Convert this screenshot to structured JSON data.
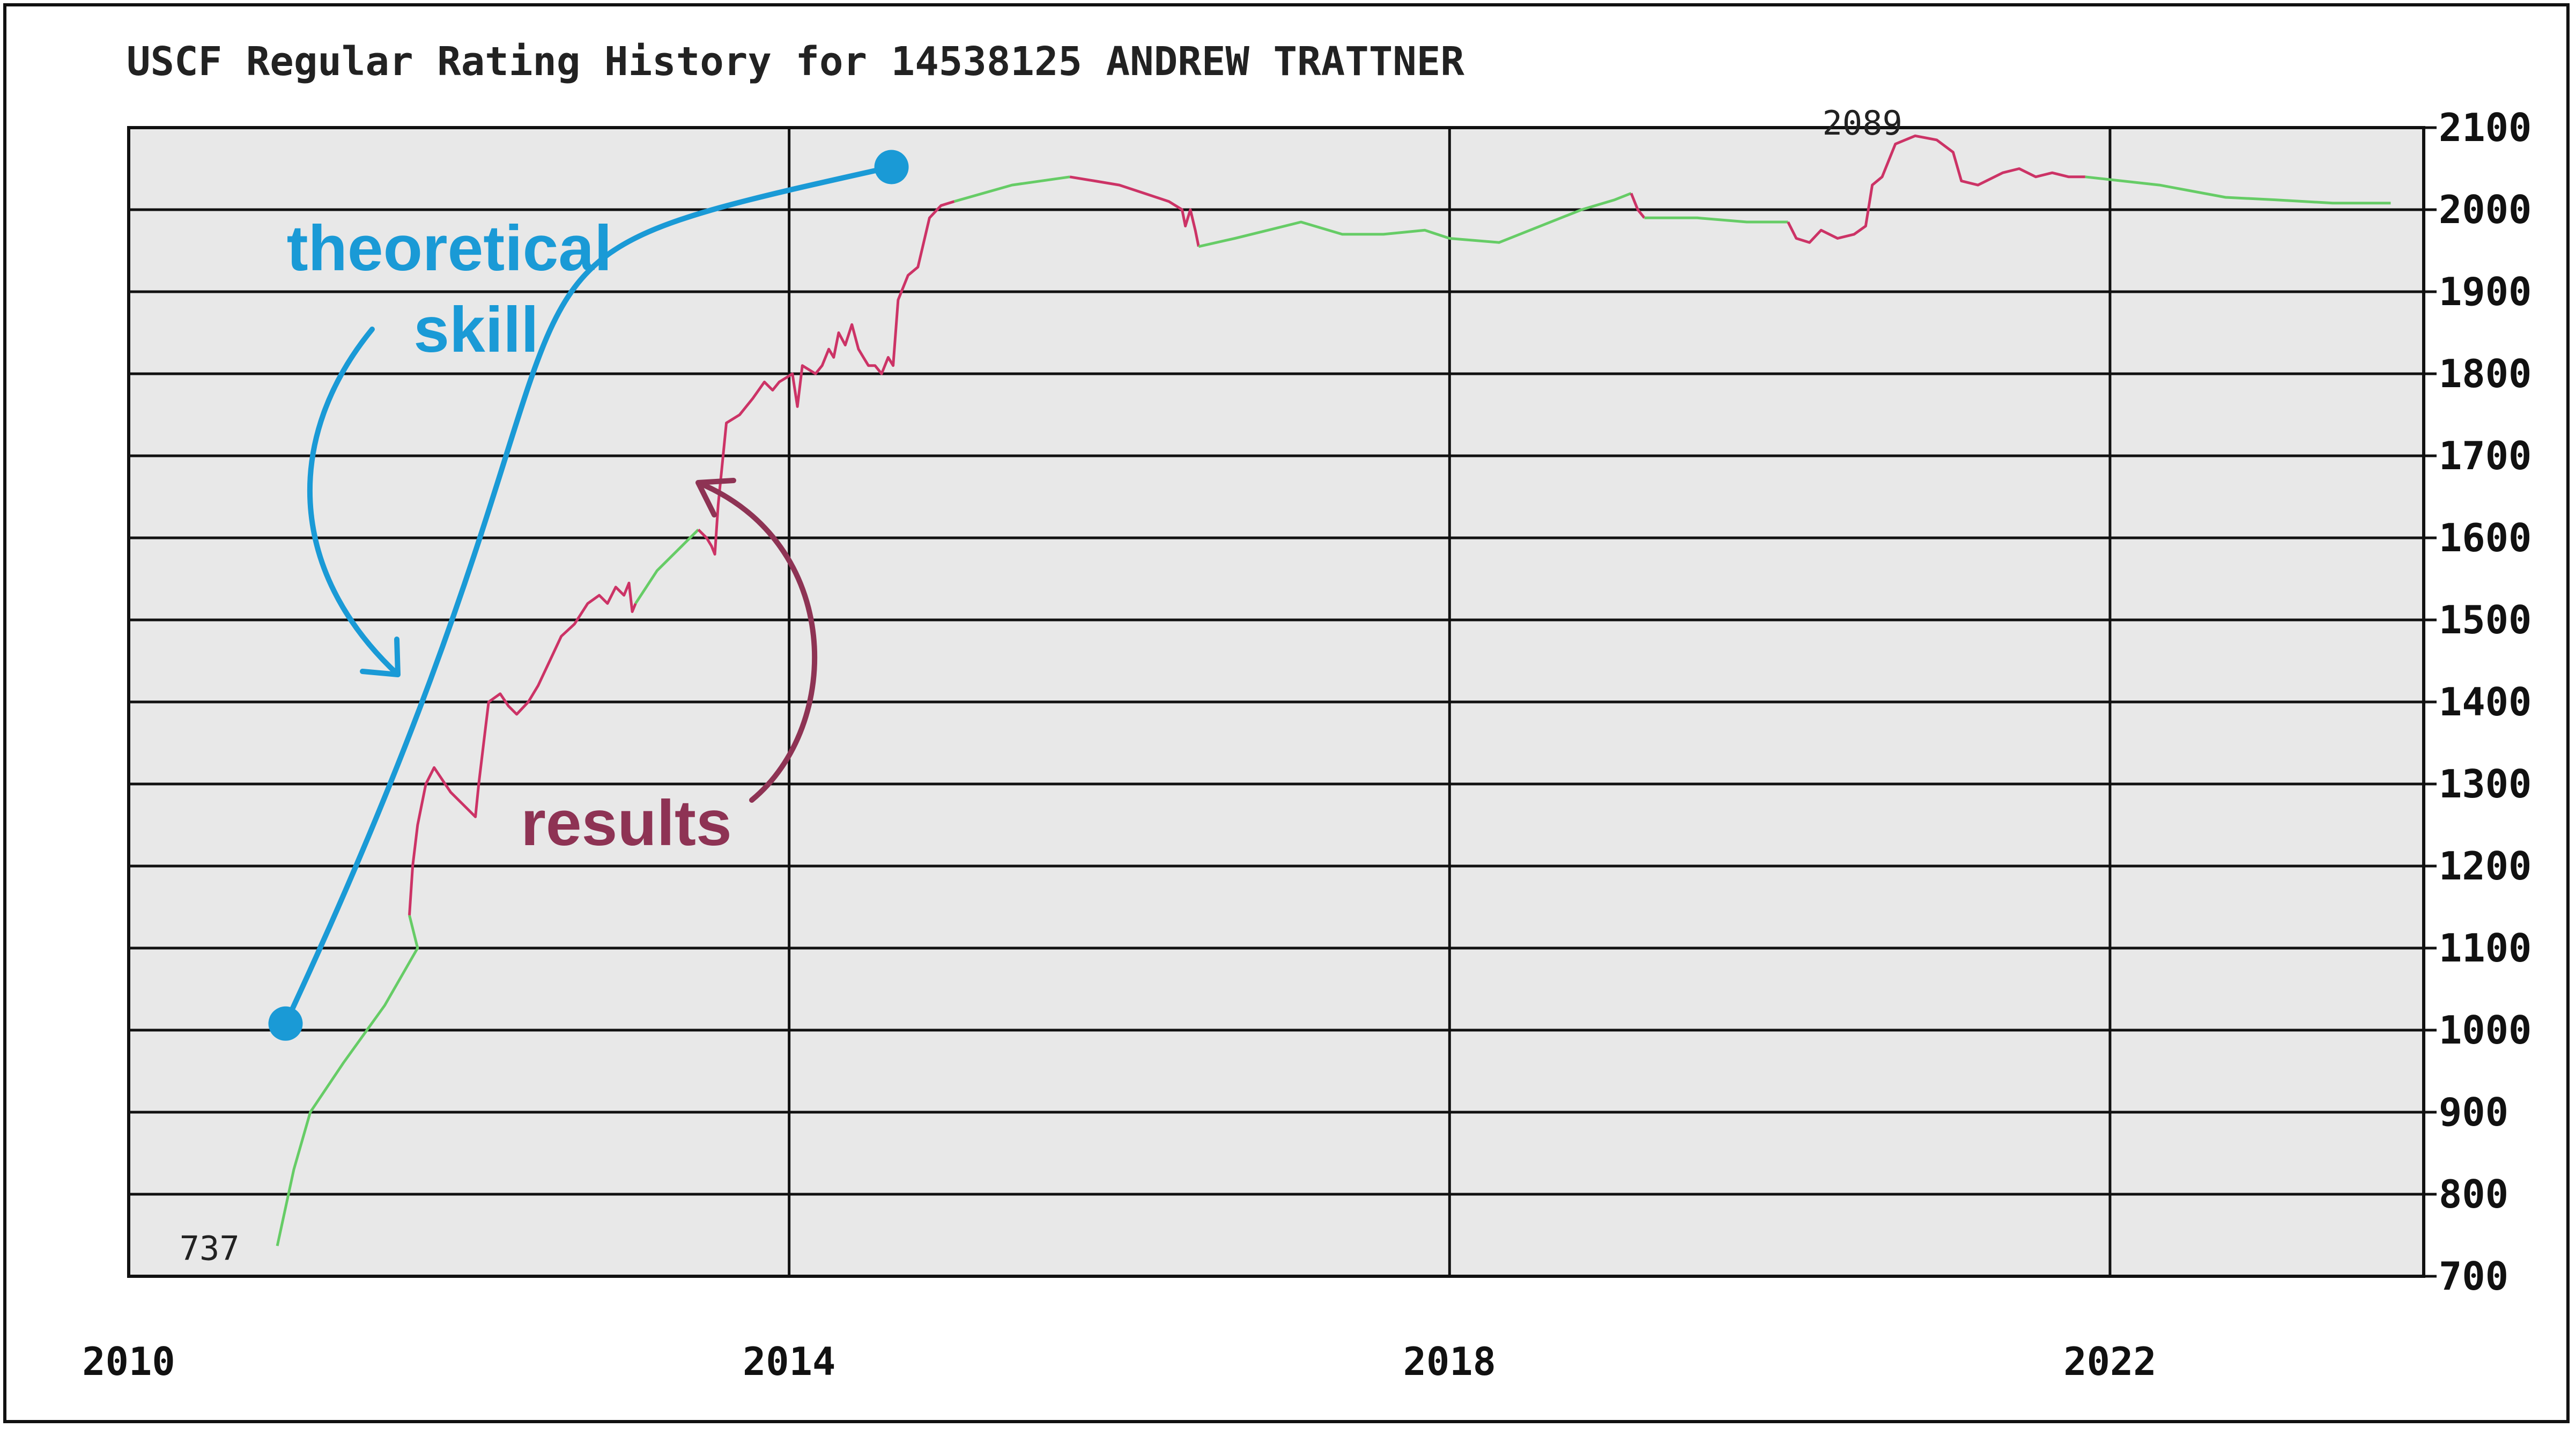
{
  "chart_data": {
    "type": "line",
    "title": "USCF Regular Rating History for 14538125 ANDREW TRATTNER",
    "xlabel": "",
    "ylabel": "",
    "xlim": [
      2010,
      2023.9
    ],
    "ylim": [
      700,
      2100
    ],
    "x_ticks": [
      {
        "value": 2010,
        "label": "2010"
      },
      {
        "value": 2014,
        "label": "2014"
      },
      {
        "value": 2018,
        "label": "2018"
      },
      {
        "value": 2022,
        "label": "2022"
      }
    ],
    "y_ticks": [
      {
        "value": 2100,
        "label": "2100"
      },
      {
        "value": 2000,
        "label": "2000"
      },
      {
        "value": 1900,
        "label": "1900"
      },
      {
        "value": 1800,
        "label": "1800"
      },
      {
        "value": 1700,
        "label": "1700"
      },
      {
        "value": 1600,
        "label": "1600"
      },
      {
        "value": 1500,
        "label": "1500"
      },
      {
        "value": 1400,
        "label": "1400"
      },
      {
        "value": 1300,
        "label": "1300"
      },
      {
        "value": 1200,
        "label": "1200"
      },
      {
        "value": 1100,
        "label": "1100"
      },
      {
        "value": 1000,
        "label": "1000"
      },
      {
        "value": 900,
        "label": "900"
      },
      {
        "value": 800,
        "label": "800"
      },
      {
        "value": 700,
        "label": "700"
      }
    ],
    "grid": true,
    "axis_side": "right",
    "colors": {
      "plot_bg": "#e8e8e8",
      "grid": "#111111",
      "green": "#66cc66",
      "red": "#cc3366",
      "skill": "#1a9ad6",
      "results": "#8e3354"
    },
    "series": [
      {
        "color": "green",
        "points": [
          [
            2010.9,
            737
          ],
          [
            2011.0,
            830
          ],
          [
            2011.1,
            900
          ],
          [
            2011.3,
            960
          ],
          [
            2011.55,
            1030
          ],
          [
            2011.75,
            1100
          ],
          [
            2011.7,
            1140
          ]
        ]
      },
      {
        "color": "red",
        "points": [
          [
            2011.7,
            1140
          ],
          [
            2011.72,
            1200
          ],
          [
            2011.75,
            1250
          ],
          [
            2011.8,
            1300
          ],
          [
            2011.85,
            1320
          ],
          [
            2011.95,
            1290
          ],
          [
            2012.05,
            1270
          ],
          [
            2012.1,
            1260
          ],
          [
            2012.12,
            1300
          ],
          [
            2012.15,
            1350
          ],
          [
            2012.18,
            1400
          ],
          [
            2012.25,
            1410
          ],
          [
            2012.3,
            1395
          ],
          [
            2012.35,
            1385
          ],
          [
            2012.42,
            1400
          ],
          [
            2012.48,
            1420
          ],
          [
            2012.55,
            1450
          ],
          [
            2012.62,
            1480
          ],
          [
            2012.7,
            1495
          ],
          [
            2012.78,
            1520
          ],
          [
            2012.85,
            1530
          ],
          [
            2012.9,
            1520
          ],
          [
            2012.95,
            1540
          ],
          [
            2013.0,
            1530
          ],
          [
            2013.03,
            1545
          ],
          [
            2013.05,
            1510
          ],
          [
            2013.07,
            1520
          ]
        ]
      },
      {
        "color": "green",
        "points": [
          [
            2013.07,
            1520
          ],
          [
            2013.2,
            1560
          ],
          [
            2013.35,
            1590
          ],
          [
            2013.45,
            1610
          ]
        ]
      },
      {
        "color": "red",
        "points": [
          [
            2013.45,
            1610
          ],
          [
            2013.5,
            1600
          ],
          [
            2013.53,
            1590
          ],
          [
            2013.55,
            1580
          ],
          [
            2013.57,
            1640
          ],
          [
            2013.6,
            1700
          ],
          [
            2013.62,
            1740
          ],
          [
            2013.7,
            1750
          ],
          [
            2013.78,
            1770
          ],
          [
            2013.85,
            1790
          ],
          [
            2013.9,
            1780
          ],
          [
            2013.94,
            1790
          ],
          [
            2013.98,
            1795
          ],
          [
            2014.02,
            1800
          ],
          [
            2014.05,
            1760
          ],
          [
            2014.08,
            1810
          ],
          [
            2014.12,
            1805
          ],
          [
            2014.16,
            1800
          ],
          [
            2014.2,
            1810
          ],
          [
            2014.24,
            1830
          ],
          [
            2014.27,
            1820
          ],
          [
            2014.3,
            1850
          ],
          [
            2014.34,
            1835
          ],
          [
            2014.38,
            1860
          ],
          [
            2014.42,
            1830
          ],
          [
            2014.45,
            1820
          ],
          [
            2014.48,
            1810
          ],
          [
            2014.52,
            1810
          ],
          [
            2014.56,
            1800
          ],
          [
            2014.6,
            1820
          ],
          [
            2014.63,
            1810
          ],
          [
            2014.66,
            1890
          ],
          [
            2014.72,
            1920
          ],
          [
            2014.78,
            1930
          ],
          [
            2014.85,
            1990
          ],
          [
            2014.92,
            2005
          ],
          [
            2015.0,
            2010
          ]
        ]
      },
      {
        "color": "green",
        "points": [
          [
            2015.0,
            2010
          ],
          [
            2015.35,
            2030
          ],
          [
            2015.7,
            2040
          ]
        ]
      },
      {
        "color": "red",
        "points": [
          [
            2015.7,
            2040
          ],
          [
            2015.85,
            2035
          ],
          [
            2016.0,
            2030
          ],
          [
            2016.15,
            2020
          ],
          [
            2016.3,
            2010
          ],
          [
            2016.38,
            2000
          ],
          [
            2016.4,
            1980
          ],
          [
            2016.43,
            2000
          ],
          [
            2016.46,
            1975
          ],
          [
            2016.48,
            1955
          ]
        ]
      },
      {
        "color": "green",
        "points": [
          [
            2016.48,
            1955
          ],
          [
            2016.7,
            1965
          ],
          [
            2016.9,
            1975
          ],
          [
            2017.1,
            1985
          ],
          [
            2017.35,
            1970
          ],
          [
            2017.6,
            1970
          ],
          [
            2017.85,
            1975
          ],
          [
            2018.0,
            1965
          ],
          [
            2018.3,
            1960
          ],
          [
            2018.55,
            1980
          ],
          [
            2018.8,
            2000
          ],
          [
            2019.0,
            2012
          ],
          [
            2019.1,
            2020
          ]
        ]
      },
      {
        "color": "red",
        "points": [
          [
            2019.1,
            2020
          ],
          [
            2019.14,
            2000
          ],
          [
            2019.18,
            1990
          ]
        ]
      },
      {
        "color": "green",
        "points": [
          [
            2019.18,
            1990
          ],
          [
            2019.5,
            1990
          ],
          [
            2019.8,
            1985
          ],
          [
            2020.05,
            1985
          ]
        ]
      },
      {
        "color": "red",
        "points": [
          [
            2020.05,
            1985
          ],
          [
            2020.1,
            1965
          ],
          [
            2020.18,
            1960
          ],
          [
            2020.25,
            1975
          ],
          [
            2020.35,
            1965
          ],
          [
            2020.45,
            1970
          ],
          [
            2020.52,
            1980
          ],
          [
            2020.56,
            2030
          ],
          [
            2020.62,
            2040
          ],
          [
            2020.7,
            2080
          ],
          [
            2020.82,
            2090
          ],
          [
            2020.95,
            2085
          ],
          [
            2021.05,
            2070
          ],
          [
            2021.1,
            2035
          ],
          [
            2021.2,
            2030
          ],
          [
            2021.35,
            2045
          ],
          [
            2021.45,
            2050
          ],
          [
            2021.55,
            2040
          ],
          [
            2021.65,
            2045
          ],
          [
            2021.75,
            2040
          ],
          [
            2021.85,
            2040
          ]
        ]
      },
      {
        "color": "green",
        "points": [
          [
            2021.85,
            2040
          ],
          [
            2022.3,
            2030
          ],
          [
            2022.7,
            2015
          ],
          [
            2023.0,
            2012
          ],
          [
            2023.35,
            2008
          ],
          [
            2023.7,
            2008
          ]
        ]
      }
    ],
    "annotations": [
      {
        "text": "2089",
        "x": 2020.55,
        "y": 2089
      },
      {
        "text": "737",
        "x": 2010.6,
        "y": 737
      }
    ]
  },
  "overlay": {
    "skill_label_line1": "theoretical",
    "skill_label_line2": "skill",
    "results_label": "results",
    "skill_start": {
      "x": 2010.95,
      "y": 1008
    },
    "skill_end": {
      "x": 2014.62,
      "y": 2052
    }
  }
}
